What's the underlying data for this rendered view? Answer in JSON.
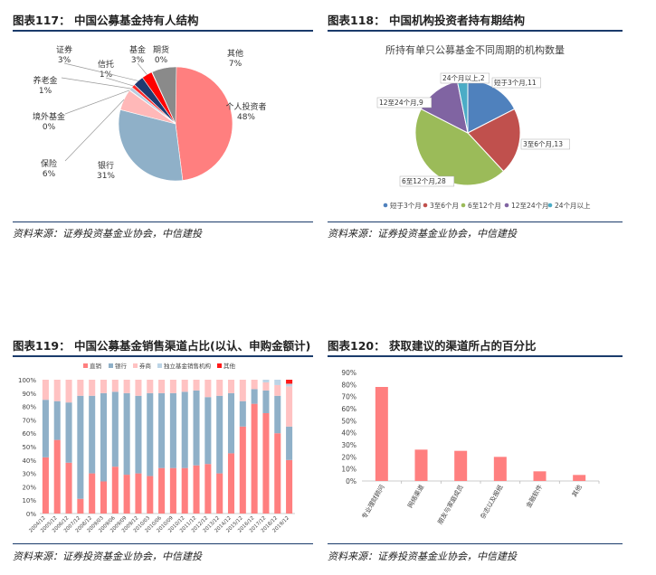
{
  "panels": {
    "p117": {
      "title": "图表117： 中国公募基金持有人结构",
      "source": "资料来源：证券投资基金业协会，中信建投"
    },
    "p118": {
      "title": "图表118： 中国机构投资者持有期结构",
      "source": "资料来源：证券投资基金业协会，中信建投"
    },
    "p119": {
      "title": "图表119： 中国公募基金销售渠道占比(以认、申购金额计)",
      "source": "资料来源：证券投资基金业协会，中信建投"
    },
    "p120": {
      "title": "图表120： 获取建议的渠道所占的百分比",
      "source": "资料来源：证券投资基金业协会，中信建投"
    }
  },
  "chart_data": [
    {
      "type": "pie",
      "categories": [
        "个人投资者",
        "银行",
        "保险",
        "境外基金",
        "养老金",
        "信托",
        "证券",
        "基金",
        "期货",
        "其他"
      ],
      "values": [
        48,
        31,
        6,
        0,
        1,
        1,
        3,
        3,
        0,
        7
      ],
      "labels": [
        "个人投资者\n48%",
        "银行\n31%",
        "保险\n6%",
        "境外基金\n0%",
        "养老金\n1%",
        "信托\n1%",
        "证券\n3%",
        "基金\n3%",
        "期货\n0%",
        "其他\n7%"
      ],
      "colors": [
        "#ff7f7f",
        "#8fb0c8",
        "#ffb8b8",
        "#cfe3ef",
        "#b9cde0",
        "#ff2a2a",
        "#1f3a70",
        "#ff0000",
        "#2e5fa0",
        "#8a8a8a"
      ]
    },
    {
      "type": "pie",
      "title": "所持有单只公募基金不同周期的机构数量",
      "categories": [
        "短于3个月",
        "3至6个月",
        "6至12个月",
        "12至24个月",
        "24个月以上"
      ],
      "values": [
        11,
        13,
        28,
        9,
        2
      ],
      "labels": [
        "短于3个月,11",
        "3至6个月,13",
        "6至12个月,28",
        "12至24个月,9",
        "24个月以上,2"
      ],
      "colors": [
        "#4f81bd",
        "#c0504d",
        "#9bbb59",
        "#8064a2",
        "#4bacc6"
      ],
      "legend": "bottom"
    },
    {
      "type": "bar",
      "stacked": true,
      "categories": [
        "2004/12",
        "2005/12",
        "2006/12",
        "2007/12",
        "2008/12",
        "2009/03",
        "2009/06",
        "2009/09",
        "2009/12",
        "2010/03",
        "2010/06",
        "2010/09",
        "2010/12",
        "2011/12",
        "2012/12",
        "2013/12",
        "2014/12",
        "2015/12",
        "2016/12",
        "2017/12",
        "2018/12",
        "2019/12"
      ],
      "series": [
        {
          "name": "直销",
          "values": [
            42,
            55,
            38,
            11,
            30,
            24,
            35,
            29,
            30,
            28,
            34,
            34,
            34,
            36,
            37,
            30,
            45,
            65,
            82,
            75,
            60,
            40
          ]
        },
        {
          "name": "银行",
          "values": [
            43,
            29,
            45,
            77,
            58,
            66,
            56,
            61,
            58,
            62,
            56,
            56,
            57,
            56,
            50,
            58,
            45,
            19,
            11,
            17,
            28,
            25
          ]
        },
        {
          "name": "券商",
          "values": [
            15,
            16,
            17,
            12,
            12,
            10,
            9,
            10,
            12,
            10,
            10,
            10,
            9,
            8,
            13,
            12,
            10,
            16,
            7,
            6,
            8,
            30
          ]
        },
        {
          "name": "独立基金销售机构",
          "values": [
            0,
            0,
            0,
            0,
            0,
            0,
            0,
            0,
            0,
            0,
            0,
            0,
            0,
            0,
            0,
            0,
            0,
            0,
            0,
            2,
            4,
            2
          ]
        },
        {
          "name": "其他",
          "values": [
            0,
            0,
            0,
            0,
            0,
            0,
            0,
            0,
            0,
            0,
            0,
            0,
            0,
            0,
            0,
            0,
            0,
            0,
            0,
            0,
            0,
            3
          ]
        }
      ],
      "colors": [
        "#ff7f7f",
        "#8fb0c8",
        "#ffc2c2",
        "#bcd4e6",
        "#ff1a1a"
      ],
      "ylim": [
        0,
        100
      ],
      "yticks": [
        "0%",
        "10%",
        "20%",
        "30%",
        "40%",
        "50%",
        "60%",
        "70%",
        "80%",
        "90%",
        "100%"
      ],
      "legend": "top"
    },
    {
      "type": "bar",
      "categories": [
        "专业理财顾问",
        "网络渠道",
        "朋友与家庭成员",
        "杂志以及报纸",
        "金融软件",
        "其他"
      ],
      "values": [
        78,
        26,
        25,
        20,
        8,
        5
      ],
      "ylim": [
        0,
        90
      ],
      "yticks": [
        "0%",
        "10%",
        "20%",
        "30%",
        "40%",
        "50%",
        "60%",
        "70%",
        "80%",
        "90%"
      ],
      "color": "#ff7f7f"
    }
  ]
}
